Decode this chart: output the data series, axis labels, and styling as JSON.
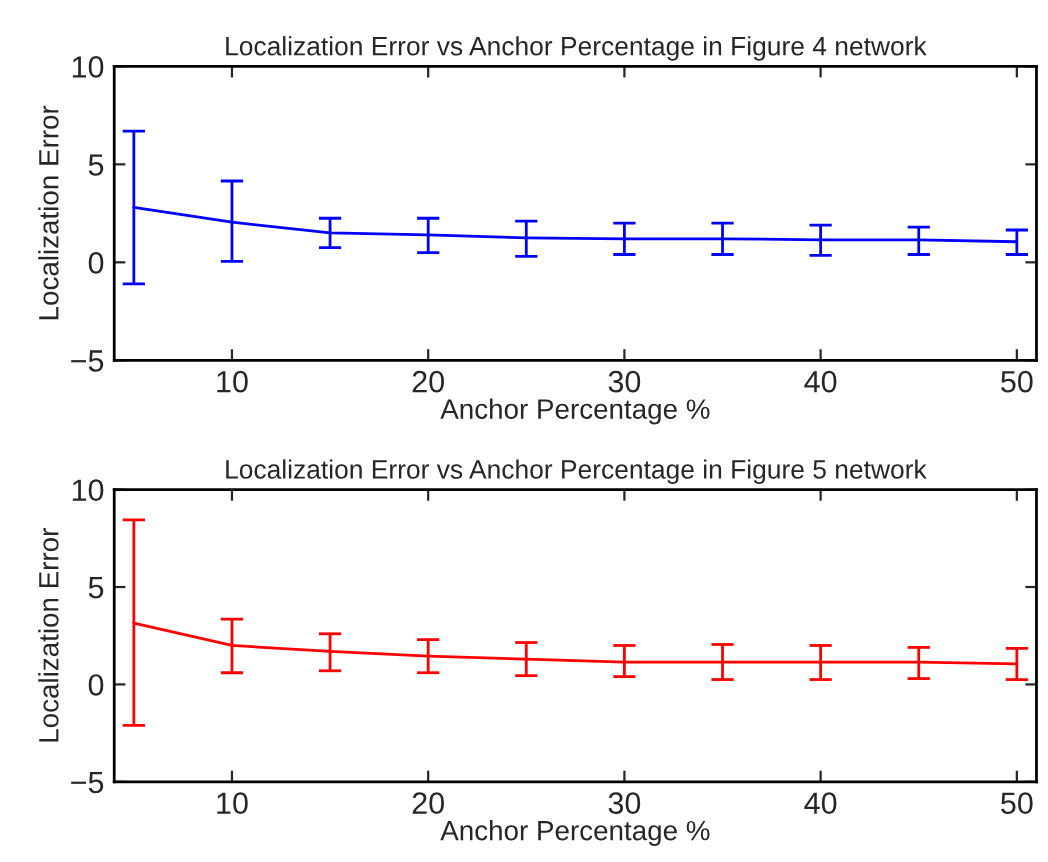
{
  "chart_data": [
    {
      "type": "line",
      "title": "Localization Error vs Anchor Percentage in Figure 4 network",
      "xlabel": "Anchor Percentage %",
      "ylabel": "Localization Error",
      "x": [
        5,
        10,
        15,
        20,
        25,
        30,
        35,
        40,
        45,
        50
      ],
      "series": [
        {
          "color": "#0000ff",
          "values": [
            2.8,
            2.05,
            1.5,
            1.4,
            1.25,
            1.2,
            1.2,
            1.15,
            1.15,
            1.05
          ],
          "errors": [
            [
              -1.1,
              6.7
            ],
            [
              0.05,
              4.15
            ],
            [
              0.75,
              2.25
            ],
            [
              0.5,
              2.25
            ],
            [
              0.3,
              2.1
            ],
            [
              0.4,
              2.0
            ],
            [
              0.4,
              2.0
            ],
            [
              0.35,
              1.9
            ],
            [
              0.4,
              1.8
            ],
            [
              0.4,
              1.65
            ]
          ]
        }
      ],
      "xlim": [
        4,
        51
      ],
      "ylim": [
        -5,
        10
      ],
      "xticks": [
        10,
        20,
        30,
        40,
        50
      ],
      "yticks": [
        -5,
        0,
        5,
        10
      ],
      "grid": false,
      "marker": "none",
      "line_style": "solid"
    },
    {
      "type": "line",
      "title": "Localization Error vs Anchor Percentage in Figure 5 network",
      "xlabel": "Anchor Percentage %",
      "ylabel": "Localization Error",
      "x": [
        5,
        10,
        15,
        20,
        25,
        30,
        35,
        40,
        45,
        50
      ],
      "series": [
        {
          "color": "#ff0000",
          "values": [
            3.15,
            2.0,
            1.7,
            1.45,
            1.3,
            1.15,
            1.15,
            1.15,
            1.15,
            1.05
          ],
          "errors": [
            [
              -2.1,
              8.45
            ],
            [
              0.6,
              3.35
            ],
            [
              0.7,
              2.6
            ],
            [
              0.6,
              2.3
            ],
            [
              0.45,
              2.15
            ],
            [
              0.4,
              2.0
            ],
            [
              0.25,
              2.05
            ],
            [
              0.25,
              2.0
            ],
            [
              0.3,
              1.9
            ],
            [
              0.25,
              1.85
            ]
          ]
        }
      ],
      "xlim": [
        4,
        51
      ],
      "ylim": [
        -5,
        10
      ],
      "xticks": [
        10,
        20,
        30,
        40,
        50
      ],
      "yticks": [
        -5,
        0,
        5,
        10
      ],
      "grid": false,
      "marker": "none",
      "line_style": "solid"
    }
  ]
}
